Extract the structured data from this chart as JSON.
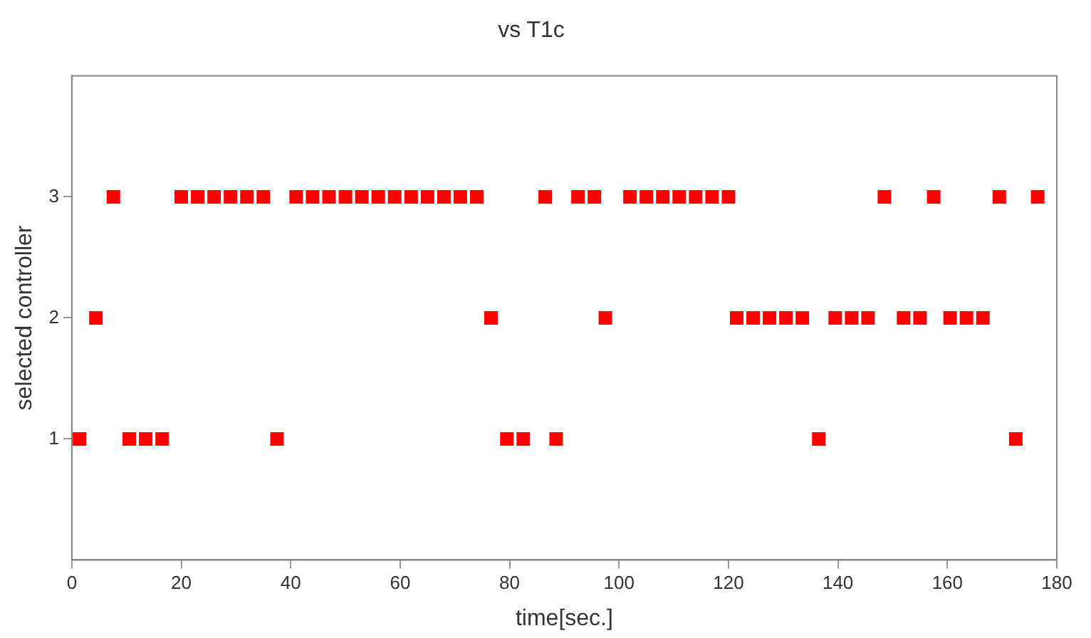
{
  "chart_data": {
    "type": "scatter",
    "title": "vs T1c",
    "xlabel": "time[sec.]",
    "ylabel": "selected controller",
    "marker": "square",
    "grid": false,
    "legend": false,
    "xlim": [
      0,
      180
    ],
    "xticks": [
      0,
      20,
      40,
      60,
      80,
      100,
      120,
      140,
      160,
      180
    ],
    "ylim": [
      0,
      4
    ],
    "yticks": [
      1,
      2,
      3
    ],
    "series": [
      {
        "color": "#ff0000",
        "x": [
          1.4,
          4.4,
          7.6,
          10.5,
          13.5,
          16.5,
          20,
          23,
          26,
          29,
          32,
          35,
          37.5,
          41,
          44,
          47,
          50,
          53,
          56,
          59,
          62,
          65,
          68,
          71,
          74,
          76.6,
          79.5,
          82.5,
          86.5,
          88.5,
          92.5,
          95.5,
          97.5,
          102,
          105,
          108,
          111,
          114,
          117,
          120,
          121.5,
          124.5,
          127.5,
          130.5,
          133.5,
          136.5,
          139.5,
          142.5,
          145.5,
          148.5,
          152,
          155,
          157.5,
          160.5,
          163.5,
          166.5,
          169.5,
          172.5,
          176.5
        ],
        "values": [
          1,
          2,
          3,
          1,
          1,
          1,
          3,
          3,
          3,
          3,
          3,
          3,
          1,
          3,
          3,
          3,
          3,
          3,
          3,
          3,
          3,
          3,
          3,
          3,
          3,
          2,
          1,
          1,
          3,
          1,
          3,
          3,
          2,
          3,
          3,
          3,
          3,
          3,
          3,
          3,
          2,
          2,
          2,
          2,
          2,
          1,
          2,
          2,
          2,
          3,
          2,
          2,
          3,
          2,
          2,
          2,
          3,
          1,
          3
        ]
      }
    ]
  }
}
